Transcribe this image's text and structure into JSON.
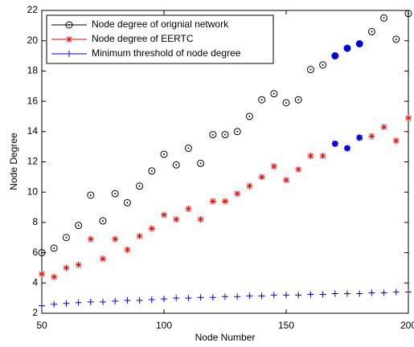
{
  "chart_data": {
    "type": "scatter",
    "xlabel": "Node Number",
    "ylabel": "Node Degree",
    "x": [
      50,
      55,
      60,
      65,
      70,
      75,
      80,
      85,
      90,
      95,
      100,
      105,
      110,
      115,
      120,
      125,
      130,
      135,
      140,
      145,
      150,
      155,
      160,
      165,
      170,
      175,
      180,
      185,
      190,
      195,
      200
    ],
    "series": [
      {
        "name": "Node degree of orignial network",
        "color": "#000000",
        "marker": "circle",
        "values": [
          6.0,
          6.3,
          7.0,
          7.8,
          9.8,
          8.1,
          9.9,
          9.3,
          10.4,
          11.4,
          12.5,
          11.8,
          12.9,
          11.9,
          13.8,
          13.8,
          14.0,
          15.0,
          16.1,
          16.5,
          15.9,
          16.1,
          18.1,
          18.4,
          19.0,
          19.5,
          19.8,
          20.6,
          21.5,
          20.1,
          21.8
        ]
      },
      {
        "name": "Node degree of EERTC",
        "color": "#ff0000",
        "marker": "star",
        "values": [
          4.6,
          4.4,
          5.0,
          5.2,
          6.9,
          5.6,
          6.9,
          6.2,
          7.1,
          7.6,
          8.5,
          8.2,
          8.9,
          8.2,
          9.4,
          9.4,
          9.9,
          10.4,
          11.0,
          11.7,
          10.8,
          11.5,
          12.4,
          12.4,
          13.2,
          12.9,
          13.6,
          13.7,
          14.3,
          13.4,
          14.9
        ]
      },
      {
        "name": "Minimum threshold of node degree",
        "color": "#0000ff",
        "marker": "plus",
        "values": [
          2.5,
          2.6,
          2.65,
          2.7,
          2.75,
          2.75,
          2.8,
          2.85,
          2.85,
          2.9,
          2.95,
          3.0,
          3.0,
          3.05,
          3.05,
          3.1,
          3.1,
          3.15,
          3.15,
          3.2,
          3.2,
          3.2,
          3.25,
          3.25,
          3.3,
          3.3,
          3.3,
          3.35,
          3.35,
          3.4,
          3.4
        ]
      }
    ],
    "highlight_x": [
      170,
      175,
      180
    ],
    "highlight_color": "#0000ff",
    "xlim": [
      50,
      200
    ],
    "xticks": [
      50,
      100,
      150,
      200
    ],
    "ylim": [
      2,
      22
    ],
    "yticks": [
      2,
      4,
      6,
      8,
      10,
      12,
      14,
      16,
      18,
      20,
      22
    ],
    "legend": "upper left"
  }
}
